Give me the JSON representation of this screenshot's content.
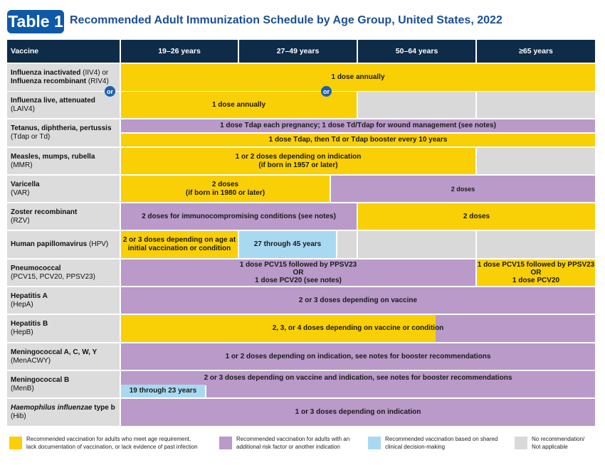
{
  "header": {
    "badge": "Table 1",
    "title": "Recommended Adult Immunization Schedule by Age Group, United States, 2022"
  },
  "columns": [
    "Vaccine",
    "19–26 years",
    "27–49 years",
    "50–64 years",
    "≥65 years"
  ],
  "or_label": "or",
  "rows": {
    "iiv": {
      "name_bold": "Influenza inactivated",
      "name_abbr": " (IIV4) or",
      "name2_bold": "Influenza recombinant",
      "name2_abbr": " (RIV4)",
      "c1": "1 dose annually"
    },
    "laiv": {
      "name_bold": "Influenza live, attenuated",
      "sub": "(LAIV4)",
      "c1": "1 dose annually"
    },
    "tdap": {
      "name_bold": "Tetanus, diphtheria, pertussis",
      "sub": "(Tdap or Td)",
      "c1": "1 dose Tdap each pregnancy; 1 dose Td/Tdap for wound management (see notes)",
      "c2": "1 dose Tdap, then Td or Tdap booster every 10 years"
    },
    "mmr": {
      "name_bold": "Measles, mumps, rubella",
      "sub": "(MMR)",
      "c1_l1": "1 or 2 doses depending on indication",
      "c1_l2": "(if born in 1957 or later)"
    },
    "var": {
      "name_bold": "Varicella",
      "sub": "(VAR)",
      "c1_l1": "2 doses",
      "c1_l2": "(if born in 1980 or later)",
      "c2": "2 doses"
    },
    "rzv": {
      "name_bold": "Zoster recombinant",
      "sub": "(RZV)",
      "c1": "2 doses for immunocompromising conditions (see notes)",
      "c2": "2 doses"
    },
    "hpv": {
      "name_bold": "Human papillomavirus",
      "name_abbr": " (HPV)",
      "c1_l1": "2 or 3 doses depending on age at",
      "c1_l2": "initial vaccination or condition",
      "c2": "27 through 45 years"
    },
    "pcv": {
      "name_bold": "Pneumococcal",
      "sub": "(PCV15, PCV20, PPSV23)",
      "c1_l1": "1 dose PCV15 followed by PPSV23",
      "c1_l2": "OR",
      "c1_l3": "1 dose PCV20 (see notes)",
      "c2_l1": "1 dose PCV15 followed by PPSV23",
      "c2_l2": "OR",
      "c2_l3": "1 dose PCV20"
    },
    "hepa": {
      "name_bold": "Hepatitis A",
      "sub": "(HepA)",
      "c1": "2 or 3 doses depending on vaccine"
    },
    "hepb": {
      "name_bold": "Hepatitis B",
      "sub": "(HepB)",
      "c1": "2, 3, or 4 doses depending on vaccine or condition"
    },
    "menacwy": {
      "name_bold": "Meningococcal A, C, W, Y",
      "sub": "(MenACWY)",
      "c1": "1 or 2 doses depending on indication, see notes for booster recommendations"
    },
    "menb": {
      "name_bold": "Meningococcal B",
      "sub": "(MenB)",
      "c1": "2 or 3 doses depending on vaccine and indication, see notes for booster recommendations",
      "c2": "19 through 23 years"
    },
    "hib": {
      "name_italic": "Haemophilus influenzae",
      "name_bold": " type b",
      "sub": "(Hib)",
      "c1": "1 or 3 doses depending on indication"
    }
  },
  "legend": [
    {
      "color": "#f9cf06",
      "l1": "Recommended vaccination for adults who meet age requirement,",
      "l2": "lack documentation of vaccination, or lack evidence of past infection"
    },
    {
      "color": "#b99ac9",
      "l1": "Recommended vaccination for adults with an",
      "l2": "additional risk factor or another indication"
    },
    {
      "color": "#a9d9f1",
      "l1": "Recommended vaccination based on shared",
      "l2": "clinical decision-making"
    },
    {
      "color": "#d9d9d9",
      "l1": "No recommendation/",
      "l2": "Not applicable"
    }
  ]
}
